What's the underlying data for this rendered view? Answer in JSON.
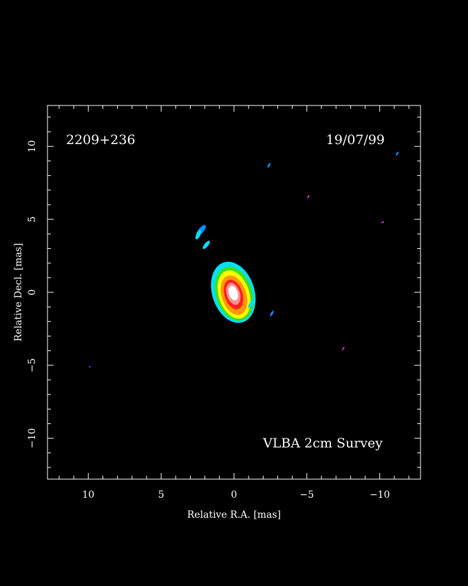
{
  "chart_data": {
    "type": "heatmap",
    "source_label": "2209+236",
    "date_label": "19/07/99",
    "survey_label": "VLBA 2cm Survey",
    "xlabel": "Relative R.A. [mas]",
    "ylabel": "Relative Decl. [mas]",
    "xlim": [
      12.8,
      -12.8
    ],
    "ylim": [
      -12.8,
      12.8
    ],
    "x_major_ticks": [
      10,
      5,
      0,
      -5,
      -10
    ],
    "x_tick_labels": [
      "10",
      "5",
      "0",
      "−5",
      "−10"
    ],
    "y_major_ticks": [
      10,
      5,
      0,
      -5,
      -10
    ],
    "y_tick_labels": [
      "10",
      "5",
      "0",
      "−5",
      "−10"
    ],
    "minor_tick_step": 1,
    "grid": false,
    "colors": {
      "background": "#000000",
      "frame": "#ffffff",
      "text": "#ffffff",
      "level_blue": "#0090ff",
      "level_cyan": "#00e0ff",
      "level_green": "#40e020",
      "level_yellow": "#ffff00",
      "level_orange": "#ff9900",
      "level_red": "#ff2020",
      "level_pink": "#ff9090",
      "level_white": "#ffffff",
      "noise_purple": "#9933ff",
      "noise_magenta": "#cc33cc"
    },
    "core": {
      "center": [
        0.05,
        -0.15
      ],
      "angle_deg": -18,
      "levels": [
        {
          "color": "#00e0ff",
          "rx": 1.45,
          "ry": 2.15,
          "dx": 0.0,
          "dy": 0.15
        },
        {
          "color": "#40e020",
          "rx": 1.25,
          "ry": 1.9,
          "dx": 0.05,
          "dy": 0.05
        },
        {
          "color": "#ffff00",
          "rx": 1.05,
          "ry": 1.7,
          "dx": 0.05,
          "dy": 0.0
        },
        {
          "color": "#ff9900",
          "rx": 0.85,
          "ry": 1.4,
          "dx": 0.05,
          "dy": -0.05
        },
        {
          "color": "#ff2020",
          "rx": 0.62,
          "ry": 1.05,
          "dx": 0.02,
          "dy": 0.0
        },
        {
          "color": "#ff9090",
          "rx": 0.45,
          "ry": 0.78,
          "dx": 0.0,
          "dy": 0.05
        },
        {
          "color": "#ffffff",
          "rx": 0.3,
          "ry": 0.52,
          "dx": 0.0,
          "dy": 0.1
        }
      ]
    },
    "features": [
      {
        "x": 2.25,
        "y": 4.25,
        "rx": 0.45,
        "ry": 0.18,
        "angle": -50,
        "color": "#0090ff"
      },
      {
        "x": 2.45,
        "y": 3.95,
        "rx": 0.35,
        "ry": 0.14,
        "angle": -65,
        "color": "#00e0ff"
      },
      {
        "x": 1.9,
        "y": 3.25,
        "rx": 0.35,
        "ry": 0.13,
        "angle": -50,
        "color": "#00e0ff"
      },
      {
        "x": -1.15,
        "y": -0.8,
        "rx": 0.32,
        "ry": 0.1,
        "angle": -60,
        "color": "#00e0ff"
      },
      {
        "x": -2.6,
        "y": -1.45,
        "rx": 0.22,
        "ry": 0.07,
        "angle": -60,
        "color": "#0090ff"
      },
      {
        "x": -2.4,
        "y": 8.7,
        "rx": 0.18,
        "ry": 0.07,
        "angle": -60,
        "color": "#0090ff"
      },
      {
        "x": -11.2,
        "y": 9.5,
        "rx": 0.15,
        "ry": 0.06,
        "angle": -60,
        "color": "#0090ff"
      },
      {
        "x": -5.1,
        "y": 6.55,
        "rx": 0.12,
        "ry": 0.05,
        "angle": -60,
        "color": "#cc33cc"
      },
      {
        "x": -10.2,
        "y": 4.8,
        "rx": 0.1,
        "ry": 0.05,
        "angle": -30,
        "color": "#cc33cc"
      },
      {
        "x": -7.5,
        "y": -3.85,
        "rx": 0.14,
        "ry": 0.05,
        "angle": -60,
        "color": "#cc33cc"
      },
      {
        "x": 9.9,
        "y": -5.1,
        "rx": 0.08,
        "ry": 0.04,
        "angle": 0,
        "color": "#9933ff"
      }
    ]
  }
}
